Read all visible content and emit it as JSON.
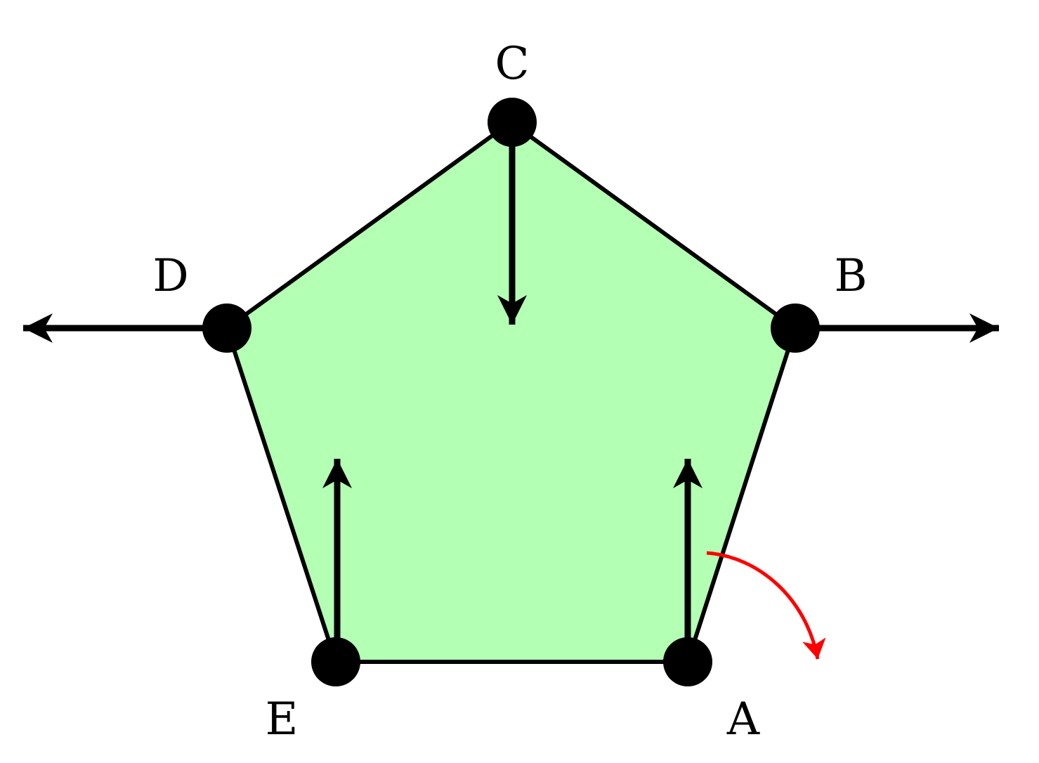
{
  "diagram": {
    "fill_color": "#b3ffb3",
    "edge_color": "#000000",
    "rotation_arrow_color": "#ff0000",
    "vertices": [
      {
        "id": "A",
        "label": "A"
      },
      {
        "id": "B",
        "label": "B"
      },
      {
        "id": "C",
        "label": "C"
      },
      {
        "id": "D",
        "label": "D"
      },
      {
        "id": "E",
        "label": "E"
      }
    ]
  }
}
